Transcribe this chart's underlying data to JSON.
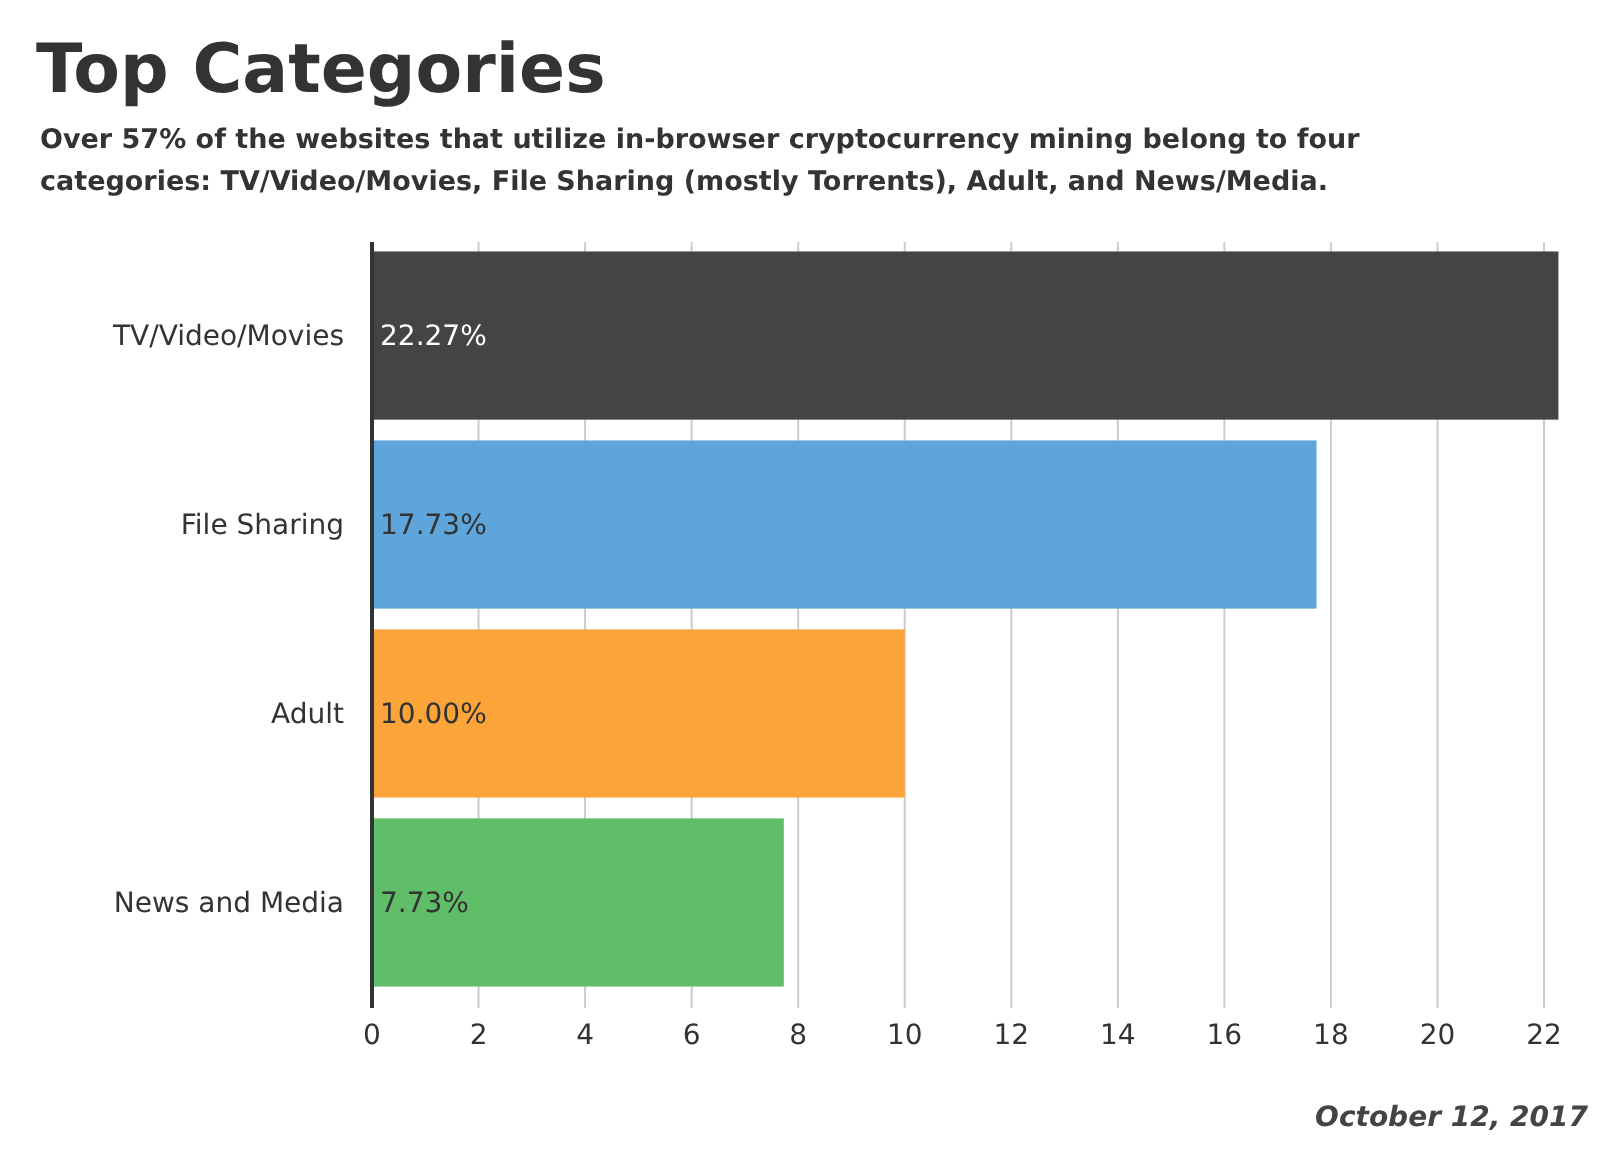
{
  "chart_data": {
    "type": "bar",
    "orientation": "horizontal",
    "title": "Top Categories",
    "subtitle": "Over 57% of the websites that utilize in-browser cryptocurrency mining belong to four categories: TV/Video/Movies, File Sharing (mostly Torrents), Adult, and News/Media.",
    "categories": [
      "TV/Video/Movies",
      "File Sharing",
      "Adult",
      "News and Media"
    ],
    "values": [
      22.27,
      17.73,
      10.0,
      7.73
    ],
    "colors": [
      "#444444",
      "#5da5da",
      "#faa43a",
      "#60bd68"
    ],
    "value_labels": [
      "22.27%",
      "17.73%",
      "10.00%",
      "7.73%"
    ],
    "xlim": [
      0,
      22.3
    ],
    "xticks": [
      0,
      2,
      4,
      6,
      8,
      10,
      12,
      14,
      16,
      18,
      20,
      22
    ],
    "grid": "x",
    "annotations": [
      "October 12, 2017"
    ]
  }
}
